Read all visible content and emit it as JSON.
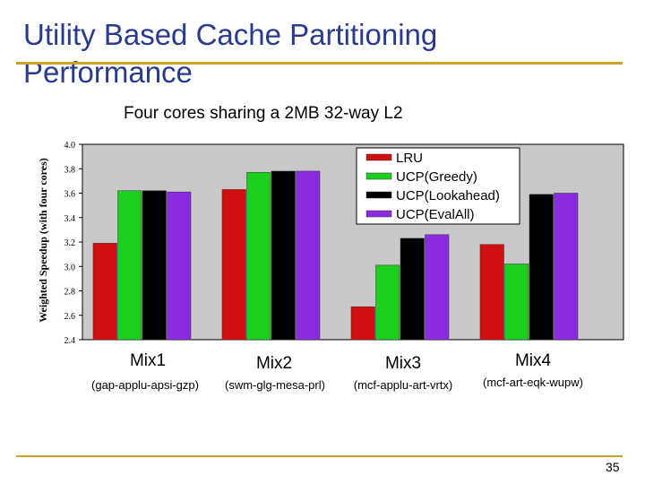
{
  "slide": {
    "title_line1": "Utility Based Cache Partitioning",
    "title_line2": "Performance",
    "subtitle": "Four cores sharing a 2MB 32-way L2",
    "page_number": "35"
  },
  "chart_data": {
    "type": "bar",
    "title": "",
    "xlabel": "",
    "ylabel": "Weighted Speedup (with four cores)",
    "ylim": [
      2.4,
      4.0
    ],
    "yticks": [
      "2.4",
      "2.6",
      "2.8",
      "3.0",
      "3.2",
      "3.4",
      "3.6",
      "3.8",
      "4.0"
    ],
    "grid": false,
    "legend_position": "top-right",
    "categories": [
      "Mix1",
      "Mix2",
      "Mix3",
      "Mix4"
    ],
    "category_details": [
      "(gap-applu-apsi-gzp)",
      "(swm-glg-mesa-prl)",
      "(mcf-applu-art-vrtx)",
      "(mcf-art-eqk-wupw)"
    ],
    "series": [
      {
        "name": "LRU",
        "color": "#d01010",
        "values": [
          3.19,
          3.63,
          2.67,
          3.18
        ]
      },
      {
        "name": "UCP(Greedy)",
        "color": "#1ccf1c",
        "values": [
          3.62,
          3.77,
          3.01,
          3.02
        ]
      },
      {
        "name": "UCP(Lookahead)",
        "color": "#000000",
        "values": [
          3.62,
          3.78,
          3.23,
          3.59
        ]
      },
      {
        "name": "UCP(EvalAll)",
        "color": "#8a2be2",
        "values": [
          3.61,
          3.78,
          3.26,
          3.6
        ]
      }
    ]
  }
}
